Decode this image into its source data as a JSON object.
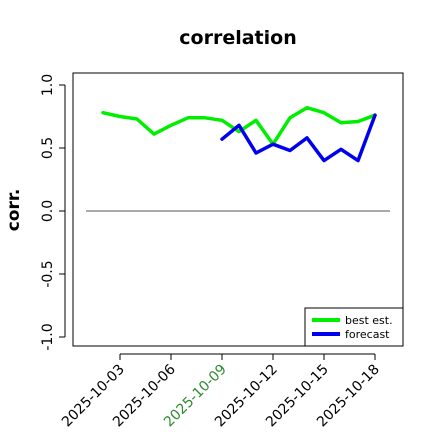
{
  "chart_data": {
    "type": "line",
    "title": "correlation",
    "ylabel": "corr.",
    "xlabel": "",
    "ylim": [
      -1.0,
      1.0
    ],
    "yticks": [
      "-1.0",
      "-0.5",
      "0.0",
      "0.5",
      "1.0"
    ],
    "ytick_values": [
      -1.0,
      -0.5,
      0.0,
      0.5,
      1.0
    ],
    "xticks": [
      "2025-10-03",
      "2025-10-06",
      "2025-10-09",
      "2025-10-12",
      "2025-10-15",
      "2025-10-18"
    ],
    "highlight_tick": "2025-10-09",
    "highlight_color": "#2e8b2e",
    "grid": false,
    "legend_position": "bottom-right",
    "reference_line": {
      "y": 0.0,
      "color": "#555555"
    },
    "series": [
      {
        "name": "best est.",
        "color": "#00ee00",
        "x": [
          "2025-10-02",
          "2025-10-03",
          "2025-10-04",
          "2025-10-05",
          "2025-10-06",
          "2025-10-07",
          "2025-10-08",
          "2025-10-09",
          "2025-10-10",
          "2025-10-11",
          "2025-10-12",
          "2025-10-13",
          "2025-10-14",
          "2025-10-15",
          "2025-10-16",
          "2025-10-17",
          "2025-10-18"
        ],
        "values": [
          0.78,
          0.75,
          0.73,
          0.61,
          0.68,
          0.74,
          0.74,
          0.72,
          0.63,
          0.72,
          0.53,
          0.74,
          0.82,
          0.78,
          0.7,
          0.71,
          0.76
        ]
      },
      {
        "name": "forecast",
        "color": "#0000ee",
        "x": [
          "2025-10-09",
          "2025-10-10",
          "2025-10-11",
          "2025-10-12",
          "2025-10-13",
          "2025-10-14",
          "2025-10-15",
          "2025-10-16",
          "2025-10-17",
          "2025-10-18"
        ],
        "values": [
          0.57,
          0.68,
          0.46,
          0.53,
          0.48,
          0.58,
          0.4,
          0.49,
          0.4,
          0.76
        ]
      }
    ]
  }
}
